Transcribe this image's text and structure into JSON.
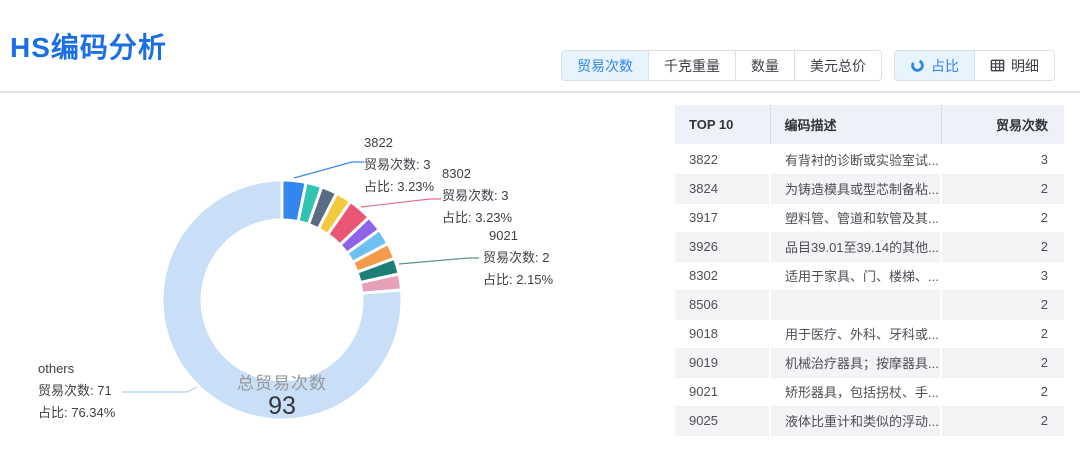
{
  "page": {
    "title": "HS编码分析"
  },
  "theme": {
    "accent": "#1b6fe6",
    "active_tab_bg": "#e7f3fd",
    "active_tab_text": "#3286e8",
    "table_header_bg": "#eef1fa",
    "table_stripe_bg": "#f4f4f7"
  },
  "toolbar": {
    "metric_tabs": [
      {
        "label": "贸易次数",
        "active": true
      },
      {
        "label": "千克重量",
        "active": false
      },
      {
        "label": "数量",
        "active": false
      },
      {
        "label": "美元总价",
        "active": false
      }
    ],
    "view_tabs": [
      {
        "label": "占比",
        "icon": "pie-chart-icon",
        "active": true
      },
      {
        "label": "明细",
        "icon": "table-icon",
        "active": false
      }
    ]
  },
  "chart_data": {
    "type": "pie",
    "title": "",
    "center_label": "总贸易次数",
    "center_value": "93",
    "total": 93,
    "categories": [
      "3822",
      "3824",
      "3917",
      "3926",
      "8302",
      "8506",
      "9018",
      "9019",
      "9021",
      "9025",
      "others"
    ],
    "values": [
      3,
      2,
      2,
      2,
      3,
      2,
      2,
      2,
      2,
      2,
      71
    ],
    "colors": [
      "#3286ee",
      "#31c4b2",
      "#5b6b83",
      "#f2c93c",
      "#ea5776",
      "#8f63e6",
      "#6cc0f2",
      "#f59a49",
      "#1b7f74",
      "#e6a0b9",
      "#c9dff7"
    ],
    "inner_radius": 80,
    "outer_radius": 120,
    "annotations": [
      {
        "code": "3822",
        "count_text": "贸易次数: 3",
        "pct_text": "占比: 3.23%",
        "color": "#3b87ee"
      },
      {
        "code": "8302",
        "count_text": "贸易次数: 3",
        "pct_text": "占比: 3.23%",
        "color": "#e8708b"
      },
      {
        "code": "9021",
        "count_text": "贸易次数: 2",
        "pct_text": "占比: 2.15%",
        "color": "#57948e"
      },
      {
        "code": "others",
        "count_text": "贸易次数: 71",
        "pct_text": "占比: 76.34%",
        "color": "#b5cfec"
      }
    ]
  },
  "table": {
    "headers": [
      "TOP 10",
      "编码描述",
      "贸易次数"
    ],
    "rows": [
      {
        "code": "3822",
        "desc": "有背衬的诊断或实验室试...",
        "count": "3"
      },
      {
        "code": "3824",
        "desc": "为铸造模具或型芯制备粘...",
        "count": "2"
      },
      {
        "code": "3917",
        "desc": "塑料管、管道和软管及其...",
        "count": "2"
      },
      {
        "code": "3926",
        "desc": "品目39.01至39.14的其他...",
        "count": "2"
      },
      {
        "code": "8302",
        "desc": "适用于家具、门、楼梯、...",
        "count": "3"
      },
      {
        "code": "8506",
        "desc": "",
        "count": "2"
      },
      {
        "code": "9018",
        "desc": "用于医疗、外科、牙科或...",
        "count": "2"
      },
      {
        "code": "9019",
        "desc": "机械治疗器具；按摩器具...",
        "count": "2"
      },
      {
        "code": "9021",
        "desc": "矫形器具，包括拐杖、手...",
        "count": "2"
      },
      {
        "code": "9025",
        "desc": "液体比重计和类似的浮动...",
        "count": "2"
      }
    ]
  }
}
